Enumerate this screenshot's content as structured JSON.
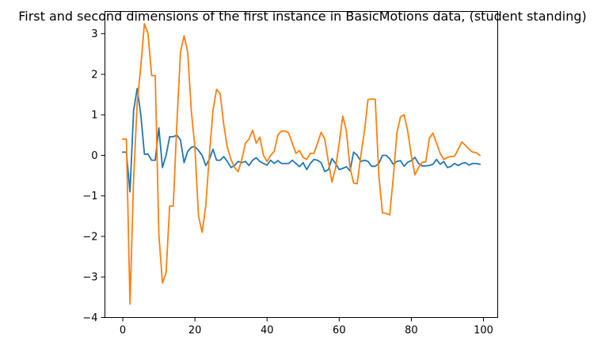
{
  "chart_data": {
    "type": "line",
    "title": "First and second dimensions of the first instance in BasicMotions data, (student standing)",
    "xlabel": "",
    "ylabel": "",
    "xlim": [
      -4.95,
      103.95
    ],
    "ylim": [
      -4,
      3.55
    ],
    "xticks": [
      0,
      20,
      40,
      60,
      80,
      100
    ],
    "yticks": [
      -4,
      -3,
      -2,
      -1,
      0,
      1,
      2,
      3
    ],
    "grid": false,
    "legend": "none",
    "series": [
      {
        "color": "#1f77b4",
        "x": [
          0,
          1,
          2,
          3,
          4,
          5,
          6,
          7,
          8,
          9,
          10,
          11,
          12,
          13,
          14,
          15,
          16,
          17,
          18,
          19,
          20,
          21,
          22,
          23,
          24,
          25,
          26,
          27,
          28,
          29,
          30,
          31,
          32,
          33,
          34,
          35,
          36,
          37,
          38,
          39,
          40,
          41,
          42,
          43,
          44,
          45,
          46,
          47,
          48,
          49,
          50,
          51,
          52,
          53,
          54,
          55,
          56,
          57,
          58,
          59,
          60,
          61,
          62,
          63,
          64,
          65,
          66,
          67,
          68,
          69,
          70,
          71,
          72,
          73,
          74,
          75,
          76,
          77,
          78,
          79,
          80,
          81,
          82,
          83,
          84,
          85,
          86,
          87,
          88,
          89,
          90,
          91,
          92,
          93,
          94,
          95,
          96,
          97,
          98,
          99
        ],
        "y": [
          0.08,
          0.08,
          -0.9,
          1.1,
          1.65,
          1.0,
          0.03,
          0.03,
          -0.12,
          -0.12,
          0.68,
          -0.3,
          0.0,
          0.46,
          0.46,
          0.5,
          0.38,
          -0.18,
          0.1,
          0.2,
          0.22,
          0.12,
          0.0,
          -0.25,
          -0.1,
          0.15,
          -0.12,
          -0.12,
          -0.03,
          -0.15,
          -0.3,
          -0.25,
          -0.15,
          -0.18,
          -0.15,
          -0.25,
          -0.12,
          -0.06,
          -0.15,
          -0.2,
          -0.24,
          -0.12,
          -0.2,
          -0.13,
          -0.2,
          -0.2,
          -0.2,
          -0.12,
          -0.2,
          -0.28,
          -0.18,
          -0.35,
          -0.2,
          -0.1,
          -0.12,
          -0.18,
          -0.4,
          -0.35,
          -0.08,
          -0.2,
          -0.35,
          -0.32,
          -0.28,
          -0.38,
          0.08,
          0.0,
          -0.15,
          -0.12,
          -0.15,
          -0.27,
          -0.27,
          -0.2,
          0.0,
          0.0,
          -0.08,
          -0.22,
          -0.15,
          -0.13,
          -0.27,
          -0.17,
          -0.13,
          -0.05,
          -0.2,
          -0.26,
          -0.26,
          -0.25,
          -0.22,
          -0.1,
          -0.22,
          -0.15,
          -0.3,
          -0.27,
          -0.2,
          -0.25,
          -0.2,
          -0.18,
          -0.24,
          -0.2,
          -0.2,
          -0.22
        ]
      },
      {
        "color": "#ff7f0e",
        "x": [
          0,
          1,
          2,
          3,
          4,
          5,
          6,
          7,
          8,
          9,
          10,
          11,
          12,
          13,
          14,
          15,
          16,
          17,
          18,
          19,
          20,
          21,
          22,
          23,
          24,
          25,
          26,
          27,
          28,
          29,
          30,
          31,
          32,
          33,
          34,
          35,
          36,
          37,
          38,
          39,
          40,
          41,
          42,
          43,
          44,
          45,
          46,
          47,
          48,
          49,
          50,
          51,
          52,
          53,
          54,
          55,
          56,
          57,
          58,
          59,
          60,
          61,
          62,
          63,
          64,
          65,
          66,
          67,
          68,
          69,
          70,
          71,
          72,
          73,
          74,
          75,
          76,
          77,
          78,
          79,
          80,
          81,
          82,
          83,
          84,
          85,
          86,
          87,
          88,
          89,
          90,
          91,
          92,
          93,
          94,
          95,
          96,
          97,
          98,
          99
        ],
        "y": [
          0.4,
          0.4,
          -3.67,
          -0.6,
          1.3,
          2.2,
          3.25,
          3.0,
          1.97,
          1.97,
          -1.95,
          -3.15,
          -2.9,
          -1.25,
          -1.25,
          0.8,
          2.55,
          2.95,
          2.55,
          1.1,
          0.2,
          -1.5,
          -1.9,
          -1.25,
          0.0,
          1.1,
          1.63,
          1.52,
          0.75,
          0.2,
          -0.1,
          -0.3,
          -0.4,
          -0.1,
          0.3,
          0.4,
          0.62,
          0.3,
          0.45,
          0.0,
          -0.15,
          0.0,
          0.1,
          0.5,
          0.6,
          0.6,
          0.55,
          0.3,
          0.05,
          0.12,
          -0.05,
          -0.1,
          0.05,
          0.05,
          0.3,
          0.57,
          0.4,
          -0.15,
          -0.66,
          -0.3,
          0.3,
          0.97,
          0.6,
          -0.3,
          -0.68,
          -0.7,
          0.0,
          0.6,
          1.38,
          1.39,
          1.39,
          -0.5,
          -1.42,
          -1.43,
          -1.47,
          -0.55,
          0.55,
          0.95,
          1.0,
          0.6,
          0.0,
          -0.48,
          -0.3,
          -0.17,
          -0.16,
          0.42,
          0.55,
          0.3,
          0.05,
          -0.1,
          -0.05,
          -0.03,
          -0.02,
          0.15,
          0.33,
          0.25,
          0.15,
          0.08,
          0.07,
          0.0
        ]
      }
    ]
  }
}
